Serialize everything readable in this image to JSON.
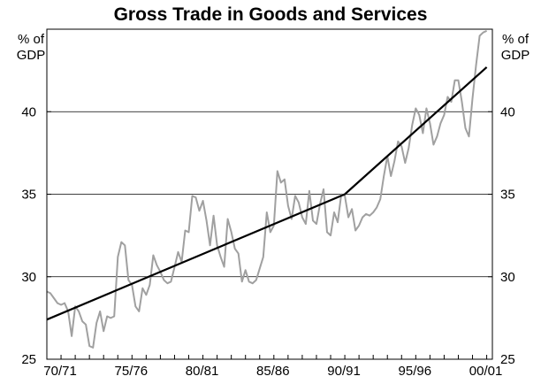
{
  "chart_data": {
    "type": "line",
    "title": "Gross Trade in Goods and Services",
    "ylabel_left": [
      "% of",
      "GDP"
    ],
    "ylabel_right": [
      "% of",
      "GDP"
    ],
    "ylim": [
      25,
      45
    ],
    "yticks": [
      25,
      30,
      35,
      40
    ],
    "xlim": [
      1970.0,
      2001.4
    ],
    "xticks": [
      {
        "label": "70/71",
        "x": 1971.0
      },
      {
        "label": "75/76",
        "x": 1976.0
      },
      {
        "label": "80/81",
        "x": 1981.0
      },
      {
        "label": "85/86",
        "x": 1986.0
      },
      {
        "label": "90/91",
        "x": 1991.0
      },
      {
        "label": "95/96",
        "x": 1996.0
      },
      {
        "label": "00/01",
        "x": 2001.0
      }
    ],
    "grid": true,
    "series": [
      {
        "color": "#a0a0a0",
        "x": [
          1970.0,
          1970.25,
          1970.5,
          1970.75,
          1971.0,
          1971.25,
          1971.5,
          1971.75,
          1972.0,
          1972.25,
          1972.5,
          1972.75,
          1973.0,
          1973.25,
          1973.5,
          1973.75,
          1974.0,
          1974.25,
          1974.5,
          1974.75,
          1975.0,
          1975.25,
          1975.5,
          1975.75,
          1976.0,
          1976.25,
          1976.5,
          1976.75,
          1977.0,
          1977.25,
          1977.5,
          1977.75,
          1978.0,
          1978.25,
          1978.5,
          1978.75,
          1979.0,
          1979.25,
          1979.5,
          1979.75,
          1980.0,
          1980.25,
          1980.5,
          1980.75,
          1981.0,
          1981.25,
          1981.5,
          1981.75,
          1982.0,
          1982.25,
          1982.5,
          1982.75,
          1983.0,
          1983.25,
          1983.5,
          1983.75,
          1984.0,
          1984.25,
          1984.5,
          1984.75,
          1985.0,
          1985.25,
          1985.5,
          1985.75,
          1986.0,
          1986.25,
          1986.5,
          1986.75,
          1987.0,
          1987.25,
          1987.5,
          1987.75,
          1988.0,
          1988.25,
          1988.5,
          1988.75,
          1989.0,
          1989.25,
          1989.5,
          1989.75,
          1990.0,
          1990.25,
          1990.5,
          1990.75,
          1991.0,
          1991.25,
          1991.5,
          1991.75,
          1992.0,
          1992.25,
          1992.5,
          1992.75,
          1993.0,
          1993.25,
          1993.5,
          1993.75,
          1994.0,
          1994.25,
          1994.5,
          1994.75,
          1995.0,
          1995.25,
          1995.5,
          1995.75,
          1996.0,
          1996.25,
          1996.5,
          1996.75,
          1997.0,
          1997.25,
          1997.5,
          1997.75,
          1998.0,
          1998.25,
          1998.5,
          1998.75,
          1999.0,
          1999.25,
          1999.5,
          1999.75,
          2000.0,
          2000.25,
          2000.5,
          2000.75,
          2001.0
        ],
        "values": [
          29.1,
          29.0,
          28.7,
          28.4,
          28.3,
          28.4,
          27.9,
          26.4,
          28.2,
          27.9,
          27.3,
          27.1,
          25.8,
          25.7,
          27.2,
          27.9,
          26.7,
          27.6,
          27.5,
          27.6,
          31.2,
          32.1,
          31.9,
          29.8,
          29.5,
          28.2,
          27.9,
          29.3,
          28.9,
          29.5,
          31.3,
          30.7,
          30.3,
          29.8,
          29.6,
          29.7,
          30.6,
          31.5,
          30.9,
          32.8,
          32.7,
          34.9,
          34.8,
          34.0,
          34.6,
          33.4,
          31.9,
          33.7,
          31.9,
          31.2,
          30.6,
          33.5,
          32.7,
          31.7,
          31.4,
          29.7,
          30.4,
          29.7,
          29.6,
          29.8,
          30.5,
          31.2,
          33.9,
          32.7,
          33.1,
          36.4,
          35.7,
          35.9,
          34.3,
          33.5,
          34.9,
          34.5,
          33.6,
          33.2,
          35.2,
          33.4,
          33.2,
          34.4,
          35.3,
          32.7,
          32.5,
          33.9,
          33.3,
          35.0,
          34.9,
          33.6,
          34.1,
          32.8,
          33.1,
          33.6,
          33.8,
          33.7,
          33.9,
          34.2,
          34.7,
          36.1,
          37.3,
          36.1,
          37.0,
          38.2,
          37.9,
          36.9,
          37.8,
          39.2,
          40.2,
          39.8,
          38.7,
          40.2,
          39.3,
          38.0,
          38.5,
          39.3,
          39.8,
          40.9,
          40.6,
          41.9,
          41.9,
          40.6,
          39.0,
          38.5,
          40.8,
          42.8,
          44.6,
          44.8,
          44.9
        ]
      },
      {
        "color": "#000000",
        "x": [
          1970.0,
          1991.0,
          2001.0
        ],
        "values": [
          27.4,
          35.0,
          42.7
        ]
      }
    ]
  }
}
